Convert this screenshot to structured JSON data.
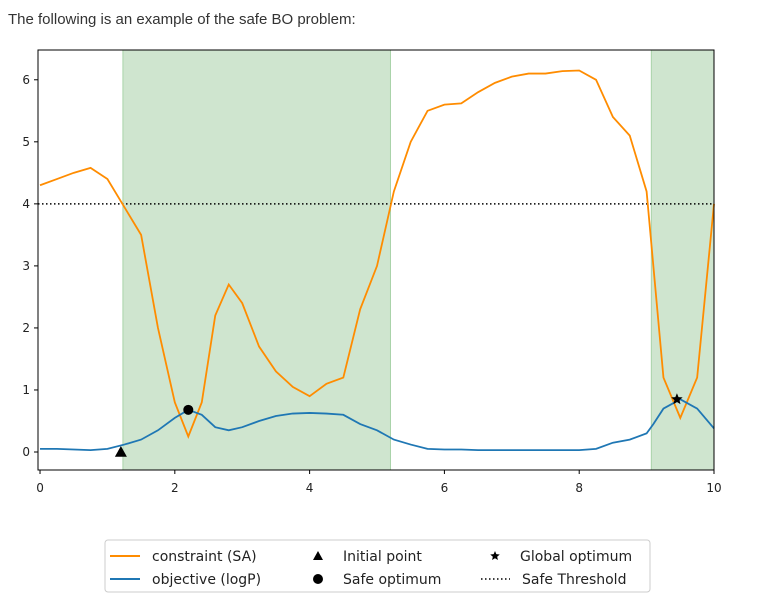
{
  "caption": "The following is an example of the safe BO problem:",
  "chart_data": {
    "type": "line",
    "x": [
      0,
      0.25,
      0.5,
      0.75,
      1,
      1.25,
      1.5,
      1.75,
      2,
      2.2,
      2.4,
      2.6,
      2.8,
      3,
      3.25,
      3.5,
      3.75,
      4,
      4.25,
      4.5,
      4.75,
      5,
      5.25,
      5.5,
      5.75,
      6,
      6.25,
      6.5,
      6.75,
      7,
      7.25,
      7.5,
      7.75,
      8,
      8.25,
      8.5,
      8.75,
      9,
      9.1,
      9.25,
      9.5,
      9.75,
      10
    ],
    "series": [
      {
        "name": "constraint (SA)",
        "color": "#ff8c00",
        "values": [
          4.3,
          4.4,
          4.5,
          4.58,
          4.4,
          3.95,
          3.5,
          2.0,
          0.8,
          0.25,
          0.8,
          2.2,
          2.7,
          2.4,
          1.7,
          1.3,
          1.05,
          0.9,
          1.1,
          1.2,
          2.3,
          3.0,
          4.2,
          5.0,
          5.5,
          5.6,
          5.62,
          5.8,
          5.95,
          6.05,
          6.1,
          6.1,
          6.14,
          6.15,
          6.0,
          5.4,
          5.1,
          4.2,
          3.0,
          1.2,
          0.55,
          1.2,
          4.0
        ]
      },
      {
        "name": "objective (logP)",
        "color": "#1f77b4",
        "values": [
          0.05,
          0.05,
          0.04,
          0.03,
          0.05,
          0.12,
          0.2,
          0.35,
          0.55,
          0.68,
          0.6,
          0.4,
          0.35,
          0.4,
          0.5,
          0.58,
          0.62,
          0.63,
          0.62,
          0.6,
          0.45,
          0.35,
          0.2,
          0.12,
          0.05,
          0.04,
          0.04,
          0.03,
          0.03,
          0.03,
          0.03,
          0.03,
          0.03,
          0.03,
          0.05,
          0.15,
          0.2,
          0.3,
          0.45,
          0.7,
          0.85,
          0.7,
          0.38
        ]
      }
    ],
    "markers": [
      {
        "name": "Initial point",
        "marker": "triangle",
        "x": 1.2,
        "y": 0
      },
      {
        "name": "Safe optimum",
        "marker": "circle",
        "x": 2.2,
        "y": 0.68
      },
      {
        "name": "Global optimum",
        "marker": "star",
        "x": 9.45,
        "y": 0.85
      }
    ],
    "threshold": {
      "name": "Safe Threshold",
      "value": 4,
      "color": "#000000"
    },
    "safe_regions": [
      [
        1.23,
        5.2
      ],
      [
        9.07,
        10
      ]
    ],
    "region_color": "#cfe5cf",
    "xlim": [
      -0.03,
      10
    ],
    "ylim": [
      -0.29,
      6.48
    ],
    "xticks": [
      0,
      2,
      4,
      6,
      8,
      10
    ],
    "yticks": [
      0,
      1,
      2,
      3,
      4,
      5,
      6
    ]
  }
}
